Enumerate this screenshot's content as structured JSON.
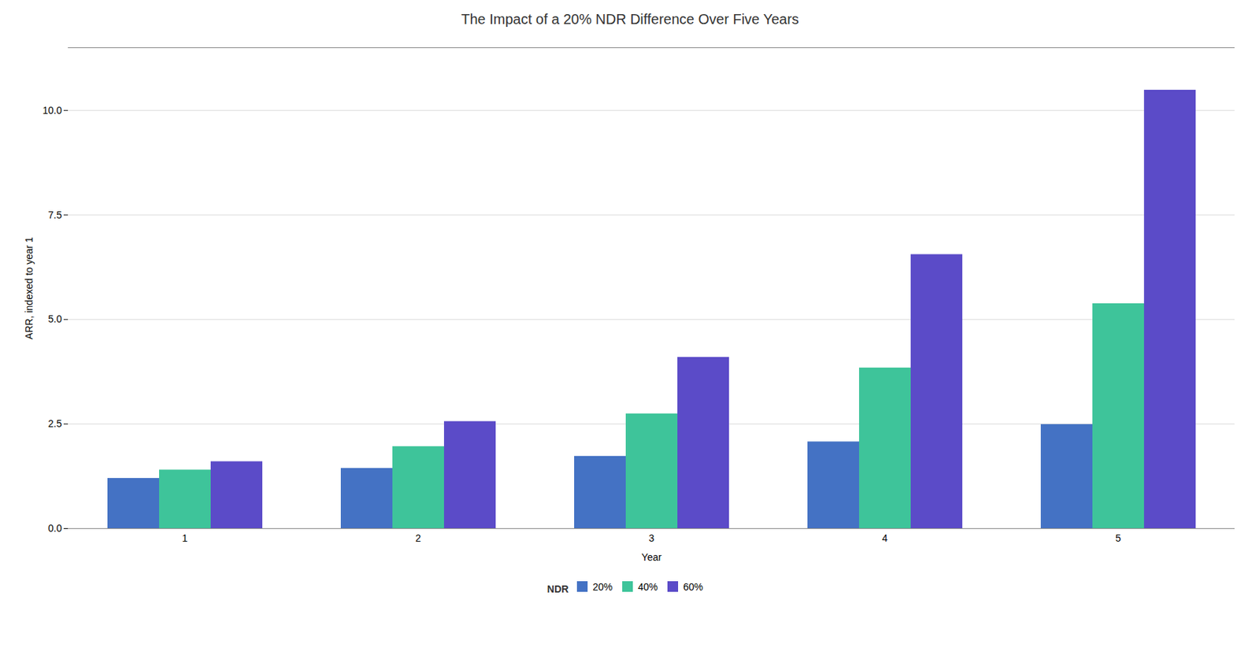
{
  "chart_data": {
    "type": "bar",
    "title": "The Impact of a 20% NDR Difference Over Five Years",
    "xlabel": "Year",
    "ylabel": "ARR, indexed to year 1",
    "categories": [
      "1",
      "2",
      "3",
      "4",
      "5"
    ],
    "series": [
      {
        "name": "20%",
        "color": "#4472C4",
        "values": [
          1.2,
          1.44,
          1.728,
          2.0736,
          2.48832
        ]
      },
      {
        "name": "40%",
        "color": "#3EC49A",
        "values": [
          1.4,
          1.96,
          2.744,
          3.8416,
          5.37824
        ]
      },
      {
        "name": "60%",
        "color": "#5B4BC8",
        "values": [
          1.6,
          2.56,
          4.096,
          6.5536,
          10.48576
        ]
      }
    ],
    "legend_title": "NDR",
    "legend": "bottom",
    "ylim": [
      0,
      11.5
    ],
    "yticks": [
      {
        "value": 0,
        "label": "0.0"
      },
      2.5,
      {
        "value": 5,
        "label": "5.0"
      },
      7.5,
      {
        "value": 10,
        "label": "10.0"
      }
    ],
    "grid": true
  }
}
